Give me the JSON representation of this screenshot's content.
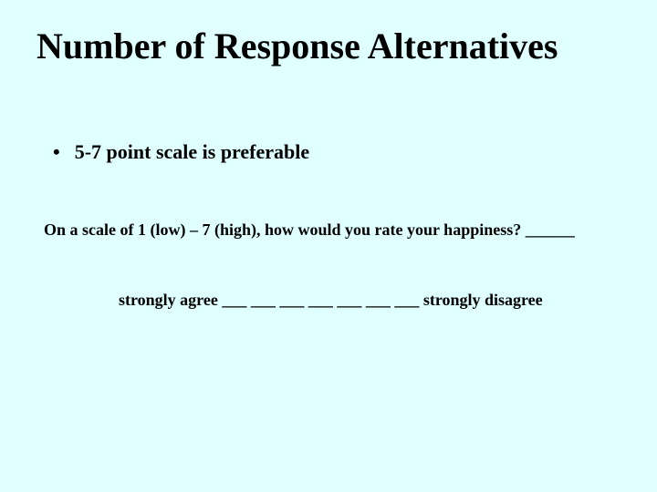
{
  "background_color": "#e0ffff",
  "text_color": "#000000",
  "font_family": "Times New Roman",
  "title": {
    "text": "Number of Response Alternatives",
    "fontsize": 40,
    "weight": "bold"
  },
  "bullet": {
    "marker": "•",
    "text": "5-7 point scale is preferable",
    "fontsize": 22,
    "weight": "bold"
  },
  "body_line_1": {
    "text": "On a scale of 1 (low) – 7 (high), how would you rate your happiness? ______",
    "fontsize": 18,
    "weight": "bold"
  },
  "body_line_2": {
    "text": "strongly agree ___ ___ ___ ___ ___ ___ ___ strongly disagree",
    "fontsize": 18,
    "weight": "bold"
  }
}
